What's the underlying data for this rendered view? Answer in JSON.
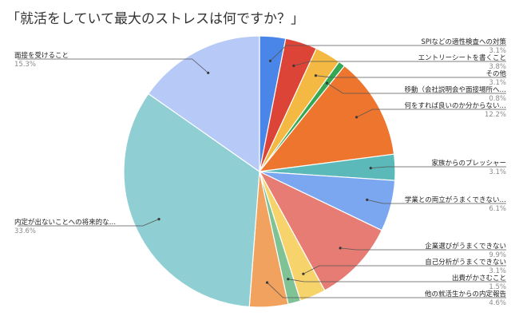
{
  "chart_data": {
    "type": "pie",
    "title": "「就活をしていて最大のストレスは何ですか？」",
    "slices": [
      {
        "label": "SPIなどの適性検査への対策",
        "value": 3.1,
        "pct_label": "3.1%",
        "color": "#4a86e8"
      },
      {
        "label": "エントリーシートを書くこと",
        "value": 3.8,
        "pct_label": "3.8%",
        "color": "#db4437"
      },
      {
        "label": "その他",
        "value": 3.1,
        "pct_label": "3.1%",
        "color": "#f4b942"
      },
      {
        "label": "移動（会社説明会や面接場所へ…",
        "value": 0.8,
        "pct_label": "0.8%",
        "color": "#34a853"
      },
      {
        "label": "何をすれば良いのか分からない…",
        "value": 12.2,
        "pct_label": "12.2%",
        "color": "#ed752d"
      },
      {
        "label": "家族からのプレッシャー",
        "value": 3.1,
        "pct_label": "3.1%",
        "color": "#5bb9b9"
      },
      {
        "label": "学業との両立がうまくできない…",
        "value": 6.1,
        "pct_label": "6.1%",
        "color": "#7ba7f0"
      },
      {
        "label": "企業選びがうまくできない",
        "value": 9.9,
        "pct_label": "9.9%",
        "color": "#e67c73"
      },
      {
        "label": "自己分析がうまくできない",
        "value": 3.1,
        "pct_label": "3.1%",
        "color": "#f6d46b"
      },
      {
        "label": "出費がかさむこと",
        "value": 1.5,
        "pct_label": "1.5%",
        "color": "#7fc295"
      },
      {
        "label": "他の就活生からの内定報告",
        "value": 4.6,
        "pct_label": "4.6%",
        "color": "#f2a25f"
      },
      {
        "label": "内定が出ないことへの将来的な…",
        "value": 33.6,
        "pct_label": "33.6%",
        "color": "#8fcfd4"
      },
      {
        "label": "面接を受けること",
        "value": 15.3,
        "pct_label": "15.3%",
        "color": "#b6c9f7"
      }
    ],
    "legend": "none"
  }
}
